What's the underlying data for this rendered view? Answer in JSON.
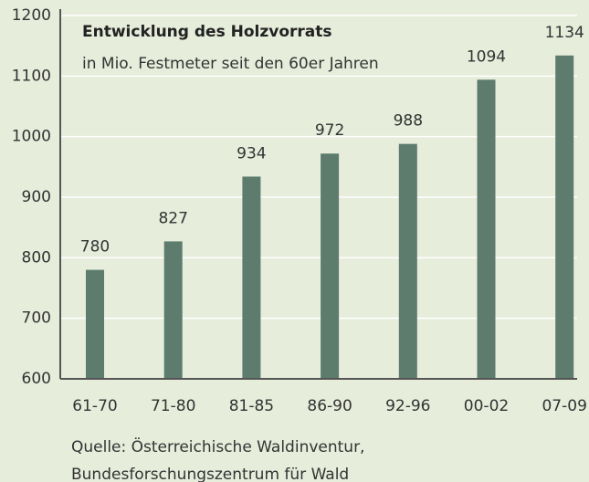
{
  "chart_data": {
    "type": "bar",
    "title": "Entwicklung des Holzvorrats",
    "subtitle": "in Mio. Festmeter seit den 60er Jahren",
    "categories": [
      "61-70",
      "71-80",
      "81-85",
      "86-90",
      "92-96",
      "00-02",
      "07-09"
    ],
    "values": [
      780,
      827,
      934,
      972,
      988,
      1094,
      1134
    ],
    "color": "#5d7c6e",
    "ylim": [
      600,
      1200
    ],
    "yticks": [
      600,
      700,
      800,
      900,
      1000,
      1100,
      1200
    ],
    "grid": true,
    "source": [
      "Quelle: Österreichische Waldinventur,",
      "Bundesforschungszentrum für Wald"
    ]
  }
}
